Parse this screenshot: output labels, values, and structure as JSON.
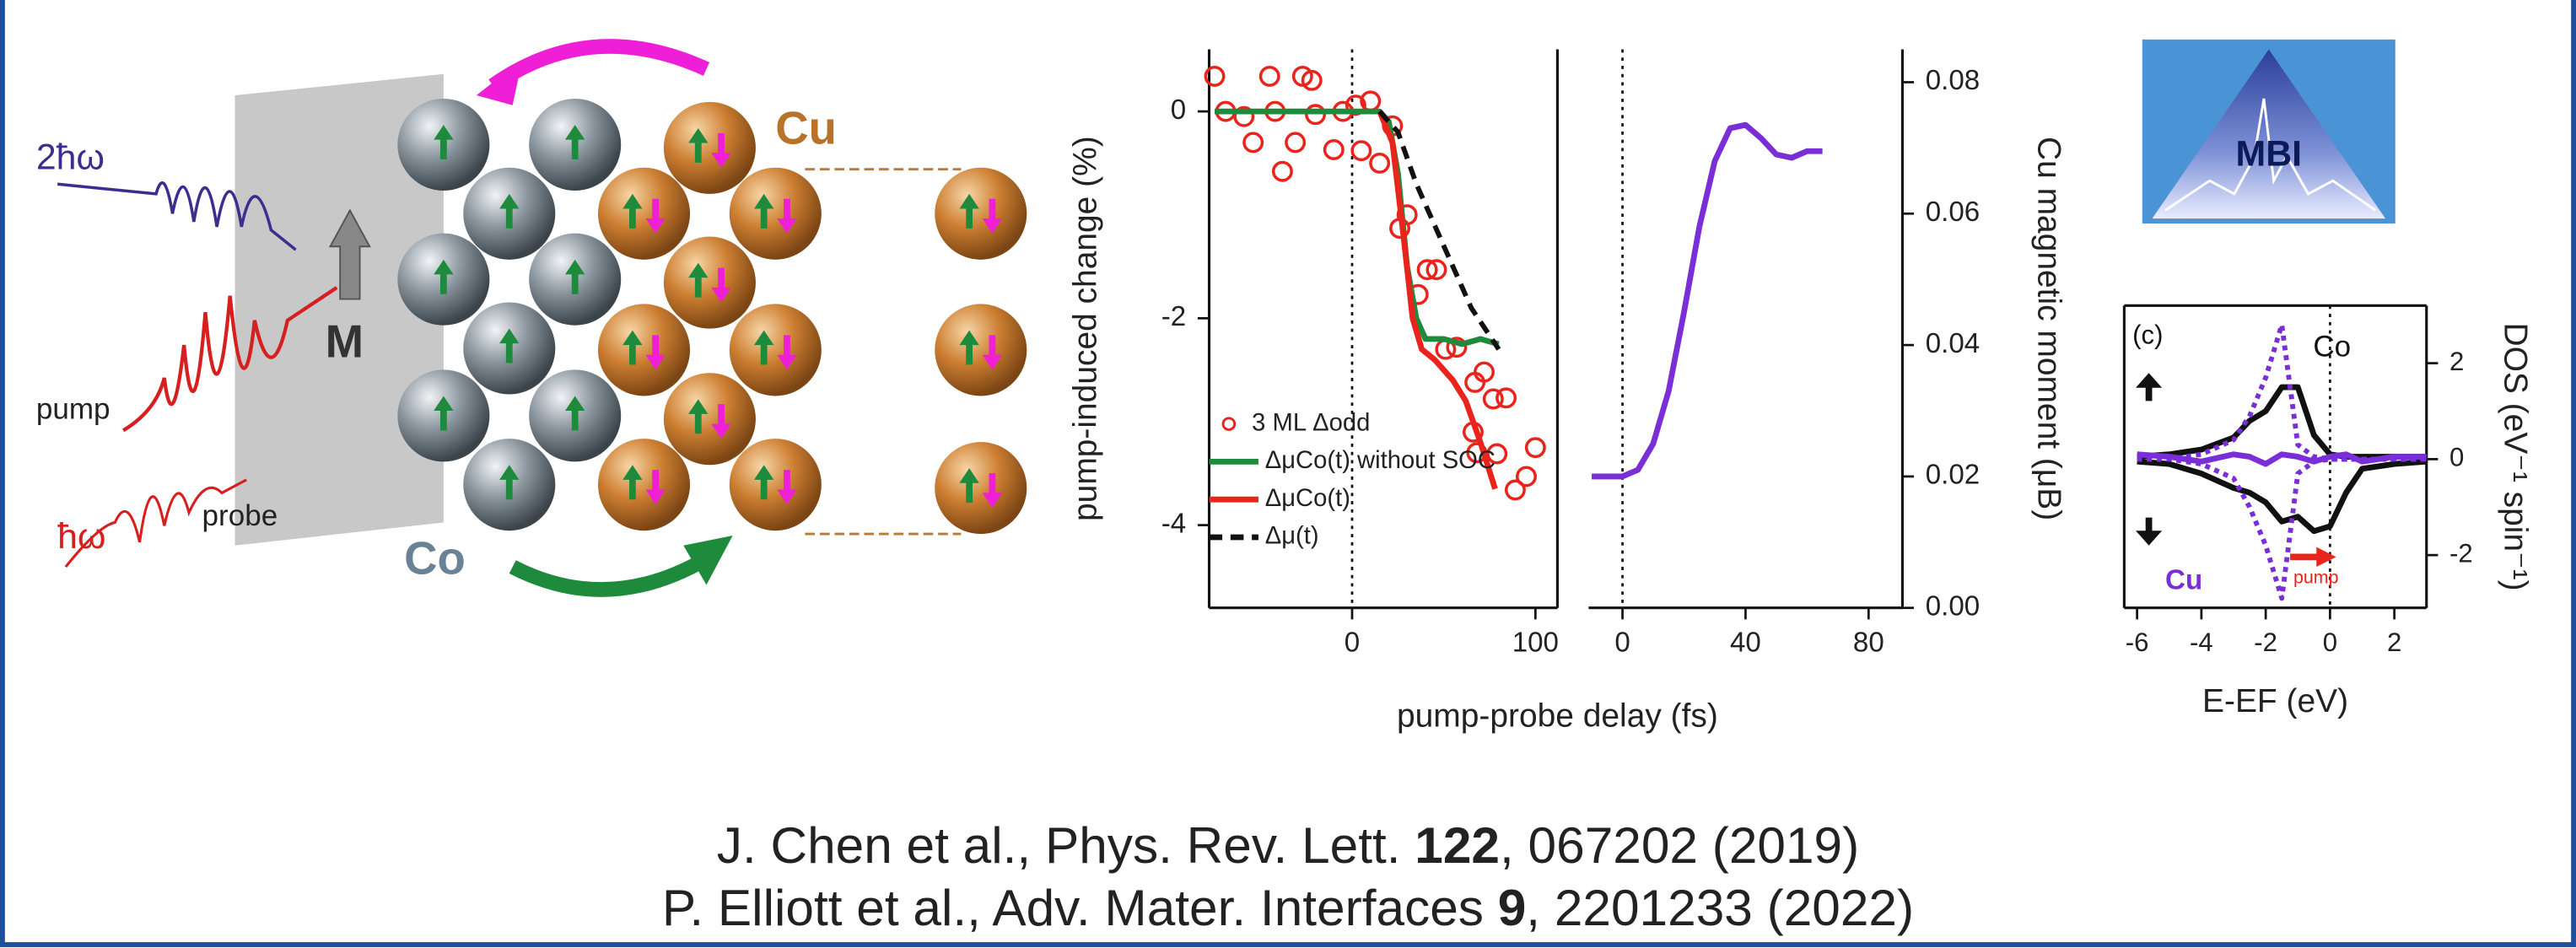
{
  "diagram": {
    "two_photon": "2ħω",
    "pump": "pump",
    "one_photon": "ħω",
    "probe": "probe",
    "magnetization": "M",
    "co": "Co",
    "cu": "Cu"
  },
  "logo": "MBI",
  "citations": [
    [
      "J. Chen et al., Phys. Rev. Lett. ",
      "122",
      ", 067202 (2019)"
    ],
    [
      "P. Elliott et al., Adv. Mater. Interfaces ",
      "9",
      ", 2201233 (2022)"
    ]
  ],
  "chart_data": [
    {
      "type": "line",
      "ylabel": "pump-induced change (%)",
      "xlabel": "pump-probe delay (fs)",
      "xlim": [
        -78,
        112
      ],
      "xticks": [
        0,
        100
      ],
      "ylim": [
        -4.8,
        0.6
      ],
      "yticks": [
        0,
        -2,
        -4
      ],
      "zero_line": true,
      "legend": "lower-left",
      "series": [
        {
          "name": "3 ML Δodd",
          "color": "#e8241c",
          "style": "markers",
          "x": [
            -75,
            -69,
            -59,
            -54,
            -45,
            -42,
            -38,
            -31,
            -27,
            -22,
            -20,
            -10,
            -5,
            2,
            5,
            10,
            15,
            22,
            26,
            30,
            36,
            41,
            46,
            51,
            57,
            66,
            67,
            68,
            72,
            77,
            79,
            84,
            89,
            95,
            100
          ],
          "values": [
            0.34,
            0.0,
            -0.05,
            -0.3,
            0.34,
            0.0,
            -0.58,
            -0.3,
            0.34,
            0.3,
            -0.03,
            -0.37,
            0.0,
            0.06,
            -0.38,
            0.1,
            -0.5,
            -0.14,
            -1.13,
            -1.0,
            -1.77,
            -1.53,
            -1.53,
            -2.3,
            -2.28,
            -3.1,
            -2.62,
            -3.3,
            -2.52,
            -2.78,
            -3.31,
            -2.77,
            -3.66,
            -3.53,
            -3.25
          ]
        },
        {
          "name": "ΔμCo(t) without SOC",
          "color": "#1e8a3c",
          "style": "solid",
          "x": [
            -75,
            -50,
            -25,
            0,
            15,
            20,
            25,
            30,
            35,
            40,
            50,
            60,
            70,
            80
          ],
          "values": [
            0,
            0,
            0,
            0,
            0,
            -0.1,
            -0.6,
            -1.5,
            -2.0,
            -2.2,
            -2.2,
            -2.25,
            -2.2,
            -2.25
          ]
        },
        {
          "name": "ΔμCo(t)",
          "color": "#e8241c",
          "style": "solid",
          "x": [
            15,
            22,
            28,
            33,
            38,
            45,
            55,
            62,
            70,
            78
          ],
          "values": [
            0,
            -0.3,
            -1.2,
            -2.0,
            -2.3,
            -2.4,
            -2.6,
            -2.8,
            -3.2,
            -3.65
          ]
        },
        {
          "name": "Δμ(t)",
          "color": "#111111",
          "style": "dashed",
          "x": [
            15,
            25,
            35,
            50,
            65,
            80
          ],
          "values": [
            0,
            -0.2,
            -0.7,
            -1.3,
            -1.9,
            -2.3
          ]
        }
      ]
    },
    {
      "type": "line",
      "ylabel": "Cu magnetic moment (μB)",
      "xlim": [
        -11,
        91
      ],
      "xticks": [
        0,
        40,
        80
      ],
      "ylim": [
        0,
        0.085
      ],
      "yticks": [
        {
          "value": 0,
          "label": "0.00"
        },
        {
          "value": 0.02,
          "label": "0.02"
        },
        {
          "value": 0.04,
          "label": "0.04"
        },
        {
          "value": 0.06,
          "label": "0.06"
        },
        {
          "value": 0.08,
          "label": "0.08"
        }
      ],
      "zero_line": true,
      "series": [
        {
          "color": "#7a2ed6",
          "style": "solid",
          "x": [
            -10,
            0,
            5,
            10,
            15,
            20,
            25,
            30,
            35,
            40,
            45,
            50,
            55,
            60,
            65
          ],
          "values": [
            0.02,
            0.02,
            0.021,
            0.025,
            0.033,
            0.045,
            0.058,
            0.068,
            0.073,
            0.0735,
            0.0715,
            0.069,
            0.0685,
            0.0695,
            0.0695
          ]
        }
      ]
    },
    {
      "type": "line",
      "ylabel": "DOS (eV⁻¹ spin⁻¹)",
      "xlabel": "E-EF (eV)",
      "xlim": [
        -6.4,
        3.0
      ],
      "xticks": [
        -6,
        -4,
        -2,
        0,
        2
      ],
      "ylim": [
        -3.1,
        3.2
      ],
      "yticks": [
        -2,
        0,
        2
      ],
      "zero_line": true,
      "annotations": [
        "(c)",
        "Co",
        "Cu",
        "pump"
      ],
      "x": [
        -6,
        -5,
        -4,
        -3,
        -2.5,
        -2,
        -1.5,
        -1,
        -0.5,
        0,
        0.5,
        1,
        2,
        3
      ],
      "series": [
        {
          "color": "#111111",
          "style": "solid",
          "values": [
            0.05,
            0.1,
            0.2,
            0.45,
            0.8,
            1.0,
            1.5,
            1.5,
            0.5,
            0.1,
            0.05,
            0.05,
            0.05,
            0.05
          ]
        },
        {
          "color": "#111111",
          "style": "solid",
          "values": [
            -0.05,
            -0.1,
            -0.3,
            -0.6,
            -0.7,
            -0.9,
            -1.3,
            -1.2,
            -1.5,
            -1.4,
            -0.7,
            -0.2,
            -0.1,
            -0.05
          ]
        },
        {
          "color": "#7a2ed6",
          "style": "dotted",
          "values": [
            0,
            0,
            0.1,
            0.4,
            0.9,
            1.7,
            2.8,
            0.3,
            0.05,
            0,
            0,
            0,
            0,
            0
          ]
        },
        {
          "color": "#7a2ed6",
          "style": "dotted",
          "values": [
            0,
            0,
            -0.1,
            -0.4,
            -1.0,
            -1.8,
            -2.9,
            -0.3,
            -0.05,
            0,
            0,
            0,
            0,
            0
          ]
        },
        {
          "color": "#7a2ed6",
          "style": "solid",
          "values": [
            0.1,
            0.05,
            -0.05,
            0.1,
            0.05,
            -0.1,
            0.1,
            0.05,
            -0.05,
            0.05,
            0.1,
            -0.05,
            0.05,
            0.05
          ]
        }
      ]
    }
  ]
}
